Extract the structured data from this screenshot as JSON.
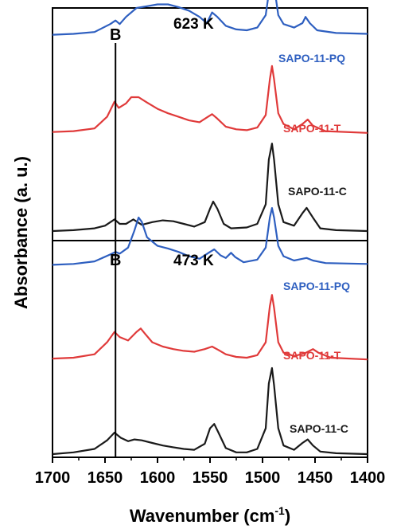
{
  "chart_data": {
    "type": "line",
    "xlabel": "Wavenumber (cm",
    "xlabel_sup": "-1",
    "xlabel_end": ")",
    "ylabel": "Absorbance (a. u.)",
    "xlim": [
      1700,
      1400
    ],
    "xticks": [
      1700,
      1650,
      1600,
      1550,
      1500,
      1450,
      1400
    ],
    "y_ticks_shown": false,
    "grid": false,
    "legend": "inline labels to the right of each curve",
    "band_marker": {
      "label": "B",
      "x": 1640
    },
    "panels": [
      {
        "id": "top",
        "label": "623 K",
        "series": [
          {
            "name": "SAPO-11-PQ",
            "color": "#2e5fc0",
            "offset": 2.2,
            "points": [
              [
                1700,
                0
              ],
              [
                1680,
                0.01
              ],
              [
                1660,
                0.03
              ],
              [
                1645,
                0.12
              ],
              [
                1640,
                0.16
              ],
              [
                1636,
                0.12
              ],
              [
                1630,
                0.2
              ],
              [
                1620,
                0.3
              ],
              [
                1610,
                0.32
              ],
              [
                1600,
                0.34
              ],
              [
                1590,
                0.34
              ],
              [
                1580,
                0.31
              ],
              [
                1570,
                0.27
              ],
              [
                1560,
                0.2
              ],
              [
                1553,
                0.13
              ],
              [
                1548,
                0.25
              ],
              [
                1543,
                0.2
              ],
              [
                1535,
                0.1
              ],
              [
                1525,
                0.06
              ],
              [
                1515,
                0.05
              ],
              [
                1505,
                0.08
              ],
              [
                1497,
                0.22
              ],
              [
                1493,
                0.55
              ],
              [
                1491,
                0.66
              ],
              [
                1489,
                0.55
              ],
              [
                1485,
                0.22
              ],
              [
                1480,
                0.12
              ],
              [
                1470,
                0.08
              ],
              [
                1462,
                0.13
              ],
              [
                1459,
                0.2
              ],
              [
                1455,
                0.13
              ],
              [
                1448,
                0.05
              ],
              [
                1430,
                0.02
              ],
              [
                1400,
                0.01
              ]
            ]
          },
          {
            "name": "SAPO-11-T",
            "color": "#e03a3a",
            "offset": 1.1,
            "points": [
              [
                1700,
                0.01
              ],
              [
                1680,
                0.02
              ],
              [
                1660,
                0.05
              ],
              [
                1648,
                0.18
              ],
              [
                1641,
                0.35
              ],
              [
                1637,
                0.28
              ],
              [
                1630,
                0.33
              ],
              [
                1625,
                0.4
              ],
              [
                1618,
                0.4
              ],
              [
                1610,
                0.34
              ],
              [
                1600,
                0.27
              ],
              [
                1590,
                0.22
              ],
              [
                1580,
                0.18
              ],
              [
                1570,
                0.14
              ],
              [
                1560,
                0.12
              ],
              [
                1552,
                0.18
              ],
              [
                1548,
                0.21
              ],
              [
                1543,
                0.16
              ],
              [
                1535,
                0.07
              ],
              [
                1525,
                0.04
              ],
              [
                1515,
                0.03
              ],
              [
                1505,
                0.06
              ],
              [
                1497,
                0.2
              ],
              [
                1493,
                0.6
              ],
              [
                1491,
                0.75
              ],
              [
                1489,
                0.6
              ],
              [
                1485,
                0.22
              ],
              [
                1480,
                0.1
              ],
              [
                1470,
                0.04
              ],
              [
                1462,
                0.1
              ],
              [
                1457,
                0.15
              ],
              [
                1452,
                0.08
              ],
              [
                1440,
                0.02
              ],
              [
                1400,
                0
              ]
            ]
          },
          {
            "name": "SAPO-11-C",
            "color": "#1a1a1a",
            "offset": 0,
            "points": [
              [
                1700,
                0
              ],
              [
                1680,
                0.01
              ],
              [
                1660,
                0.03
              ],
              [
                1650,
                0.06
              ],
              [
                1641,
                0.13
              ],
              [
                1636,
                0.08
              ],
              [
                1630,
                0.08
              ],
              [
                1623,
                0.13
              ],
              [
                1615,
                0.07
              ],
              [
                1605,
                0.1
              ],
              [
                1595,
                0.12
              ],
              [
                1585,
                0.11
              ],
              [
                1575,
                0.08
              ],
              [
                1565,
                0.05
              ],
              [
                1555,
                0.1
              ],
              [
                1550,
                0.25
              ],
              [
                1547,
                0.33
              ],
              [
                1543,
                0.25
              ],
              [
                1537,
                0.08
              ],
              [
                1530,
                0.03
              ],
              [
                1515,
                0.04
              ],
              [
                1505,
                0.08
              ],
              [
                1497,
                0.3
              ],
              [
                1494,
                0.8
              ],
              [
                1491,
                0.98
              ],
              [
                1489,
                0.8
              ],
              [
                1485,
                0.3
              ],
              [
                1480,
                0.1
              ],
              [
                1470,
                0.06
              ],
              [
                1462,
                0.2
              ],
              [
                1458,
                0.26
              ],
              [
                1452,
                0.15
              ],
              [
                1445,
                0.03
              ],
              [
                1430,
                0.01
              ],
              [
                1400,
                0
              ]
            ]
          }
        ]
      },
      {
        "id": "bottom",
        "label": "473 K",
        "series": [
          {
            "name": "SAPO-11-PQ",
            "color": "#2e5fc0",
            "offset": 2.2,
            "points": [
              [
                1700,
                0
              ],
              [
                1680,
                0.01
              ],
              [
                1660,
                0.04
              ],
              [
                1645,
                0.12
              ],
              [
                1640,
                0.15
              ],
              [
                1636,
                0.13
              ],
              [
                1628,
                0.2
              ],
              [
                1622,
                0.4
              ],
              [
                1618,
                0.55
              ],
              [
                1615,
                0.5
              ],
              [
                1610,
                0.32
              ],
              [
                1600,
                0.22
              ],
              [
                1590,
                0.19
              ],
              [
                1580,
                0.15
              ],
              [
                1570,
                0.1
              ],
              [
                1560,
                0.07
              ],
              [
                1550,
                0.15
              ],
              [
                1546,
                0.18
              ],
              [
                1540,
                0.11
              ],
              [
                1535,
                0.08
              ],
              [
                1530,
                0.14
              ],
              [
                1526,
                0.09
              ],
              [
                1518,
                0.03
              ],
              [
                1505,
                0.06
              ],
              [
                1497,
                0.2
              ],
              [
                1493,
                0.55
              ],
              [
                1491,
                0.66
              ],
              [
                1489,
                0.55
              ],
              [
                1485,
                0.22
              ],
              [
                1480,
                0.1
              ],
              [
                1470,
                0.05
              ],
              [
                1462,
                0.07
              ],
              [
                1458,
                0.08
              ],
              [
                1452,
                0.05
              ],
              [
                1440,
                0.02
              ],
              [
                1400,
                0.01
              ]
            ]
          },
          {
            "name": "SAPO-11-T",
            "color": "#e03a3a",
            "offset": 1.1,
            "points": [
              [
                1700,
                0.01
              ],
              [
                1680,
                0.02
              ],
              [
                1660,
                0.06
              ],
              [
                1648,
                0.2
              ],
              [
                1641,
                0.32
              ],
              [
                1636,
                0.26
              ],
              [
                1628,
                0.22
              ],
              [
                1620,
                0.32
              ],
              [
                1616,
                0.36
              ],
              [
                1612,
                0.3
              ],
              [
                1605,
                0.2
              ],
              [
                1595,
                0.15
              ],
              [
                1585,
                0.12
              ],
              [
                1575,
                0.1
              ],
              [
                1565,
                0.09
              ],
              [
                1555,
                0.12
              ],
              [
                1548,
                0.15
              ],
              [
                1542,
                0.11
              ],
              [
                1535,
                0.06
              ],
              [
                1525,
                0.03
              ],
              [
                1515,
                0.02
              ],
              [
                1505,
                0.05
              ],
              [
                1497,
                0.2
              ],
              [
                1493,
                0.62
              ],
              [
                1491,
                0.75
              ],
              [
                1489,
                0.6
              ],
              [
                1485,
                0.2
              ],
              [
                1480,
                0.08
              ],
              [
                1470,
                0.04
              ],
              [
                1460,
                0.07
              ],
              [
                1452,
                0.12
              ],
              [
                1447,
                0.08
              ],
              [
                1435,
                0.02
              ],
              [
                1400,
                0
              ]
            ]
          },
          {
            "name": "SAPO-11-C",
            "color": "#1a1a1a",
            "offset": 0,
            "points": [
              [
                1700,
                0
              ],
              [
                1680,
                0.02
              ],
              [
                1660,
                0.06
              ],
              [
                1648,
                0.16
              ],
              [
                1641,
                0.25
              ],
              [
                1635,
                0.19
              ],
              [
                1628,
                0.15
              ],
              [
                1622,
                0.17
              ],
              [
                1615,
                0.16
              ],
              [
                1605,
                0.13
              ],
              [
                1595,
                0.1
              ],
              [
                1585,
                0.08
              ],
              [
                1575,
                0.06
              ],
              [
                1565,
                0.05
              ],
              [
                1555,
                0.12
              ],
              [
                1550,
                0.3
              ],
              [
                1546,
                0.35
              ],
              [
                1542,
                0.25
              ],
              [
                1535,
                0.07
              ],
              [
                1525,
                0.02
              ],
              [
                1515,
                0.02
              ],
              [
                1505,
                0.06
              ],
              [
                1497,
                0.3
              ],
              [
                1494,
                0.82
              ],
              [
                1491,
                1.0
              ],
              [
                1489,
                0.8
              ],
              [
                1485,
                0.3
              ],
              [
                1480,
                0.1
              ],
              [
                1470,
                0.05
              ],
              [
                1462,
                0.13
              ],
              [
                1457,
                0.17
              ],
              [
                1452,
                0.1
              ],
              [
                1445,
                0.03
              ],
              [
                1430,
                0.01
              ],
              [
                1400,
                0
              ]
            ]
          }
        ]
      }
    ]
  }
}
